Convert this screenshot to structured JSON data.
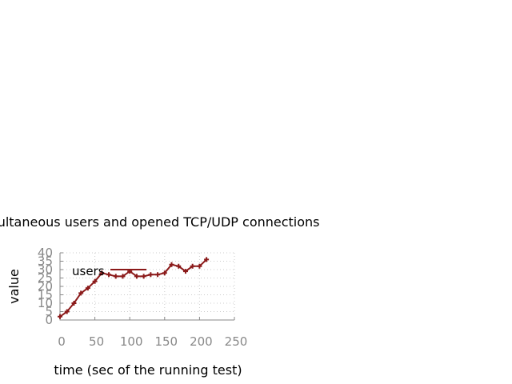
{
  "chart_data": {
    "type": "line",
    "title": "Simultaneous users and opened TCP/UDP connections",
    "xlabel": "time (sec of the running test)",
    "ylabel": "value",
    "xlim": [
      0,
      250
    ],
    "ylim": [
      0,
      40
    ],
    "xticks": [
      0,
      50,
      100,
      150,
      200,
      250
    ],
    "yticks": [
      0,
      5,
      10,
      15,
      20,
      25,
      30,
      35,
      40
    ],
    "grid": true,
    "legend_position": "top-left",
    "series": [
      {
        "name": "users",
        "color": "#8b1a1a",
        "x": [
          0,
          10,
          20,
          30,
          40,
          50,
          60,
          70,
          80,
          90,
          100,
          110,
          120,
          130,
          140,
          150,
          160,
          170,
          180,
          190,
          200,
          210
        ],
        "y": [
          2,
          5,
          10,
          16,
          19,
          23,
          28,
          27,
          26,
          26,
          29,
          26,
          26,
          27,
          27,
          28,
          33,
          32,
          29,
          32,
          32,
          36
        ]
      }
    ]
  }
}
